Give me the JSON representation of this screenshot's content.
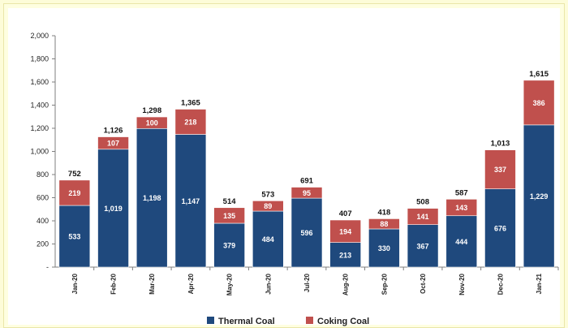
{
  "chart_data": {
    "type": "bar",
    "stacked": true,
    "title": "",
    "xlabel": "",
    "ylabel": "",
    "ylim": [
      0,
      2000
    ],
    "yticks": [
      "-",
      "200",
      "400",
      "600",
      "800",
      "1,000",
      "1,200",
      "1,400",
      "1,600",
      "1,800",
      "2,000"
    ],
    "grid": false,
    "legend_position": "bottom",
    "categories": [
      "Jan-20",
      "Feb-20",
      "Mar-20",
      "Apr-20",
      "May-20",
      "Jun-20",
      "Jul-20",
      "Aug-20",
      "Sep-20",
      "Oct-20",
      "Nov-20",
      "Dec-20",
      "Jan-21"
    ],
    "series": [
      {
        "name": "Thermal Coal",
        "color": "#1f497d",
        "values": [
          533,
          1019,
          1198,
          1147,
          379,
          484,
          596,
          213,
          330,
          367,
          444,
          676,
          1229
        ]
      },
      {
        "name": "Coking Coal",
        "color": "#c0504d",
        "values": [
          219,
          107,
          100,
          218,
          135,
          89,
          95,
          194,
          88,
          141,
          143,
          337,
          386
        ]
      }
    ],
    "totals": [
      752,
      1126,
      1298,
      1365,
      514,
      573,
      691,
      407,
      418,
      508,
      587,
      1013,
      1615
    ]
  }
}
